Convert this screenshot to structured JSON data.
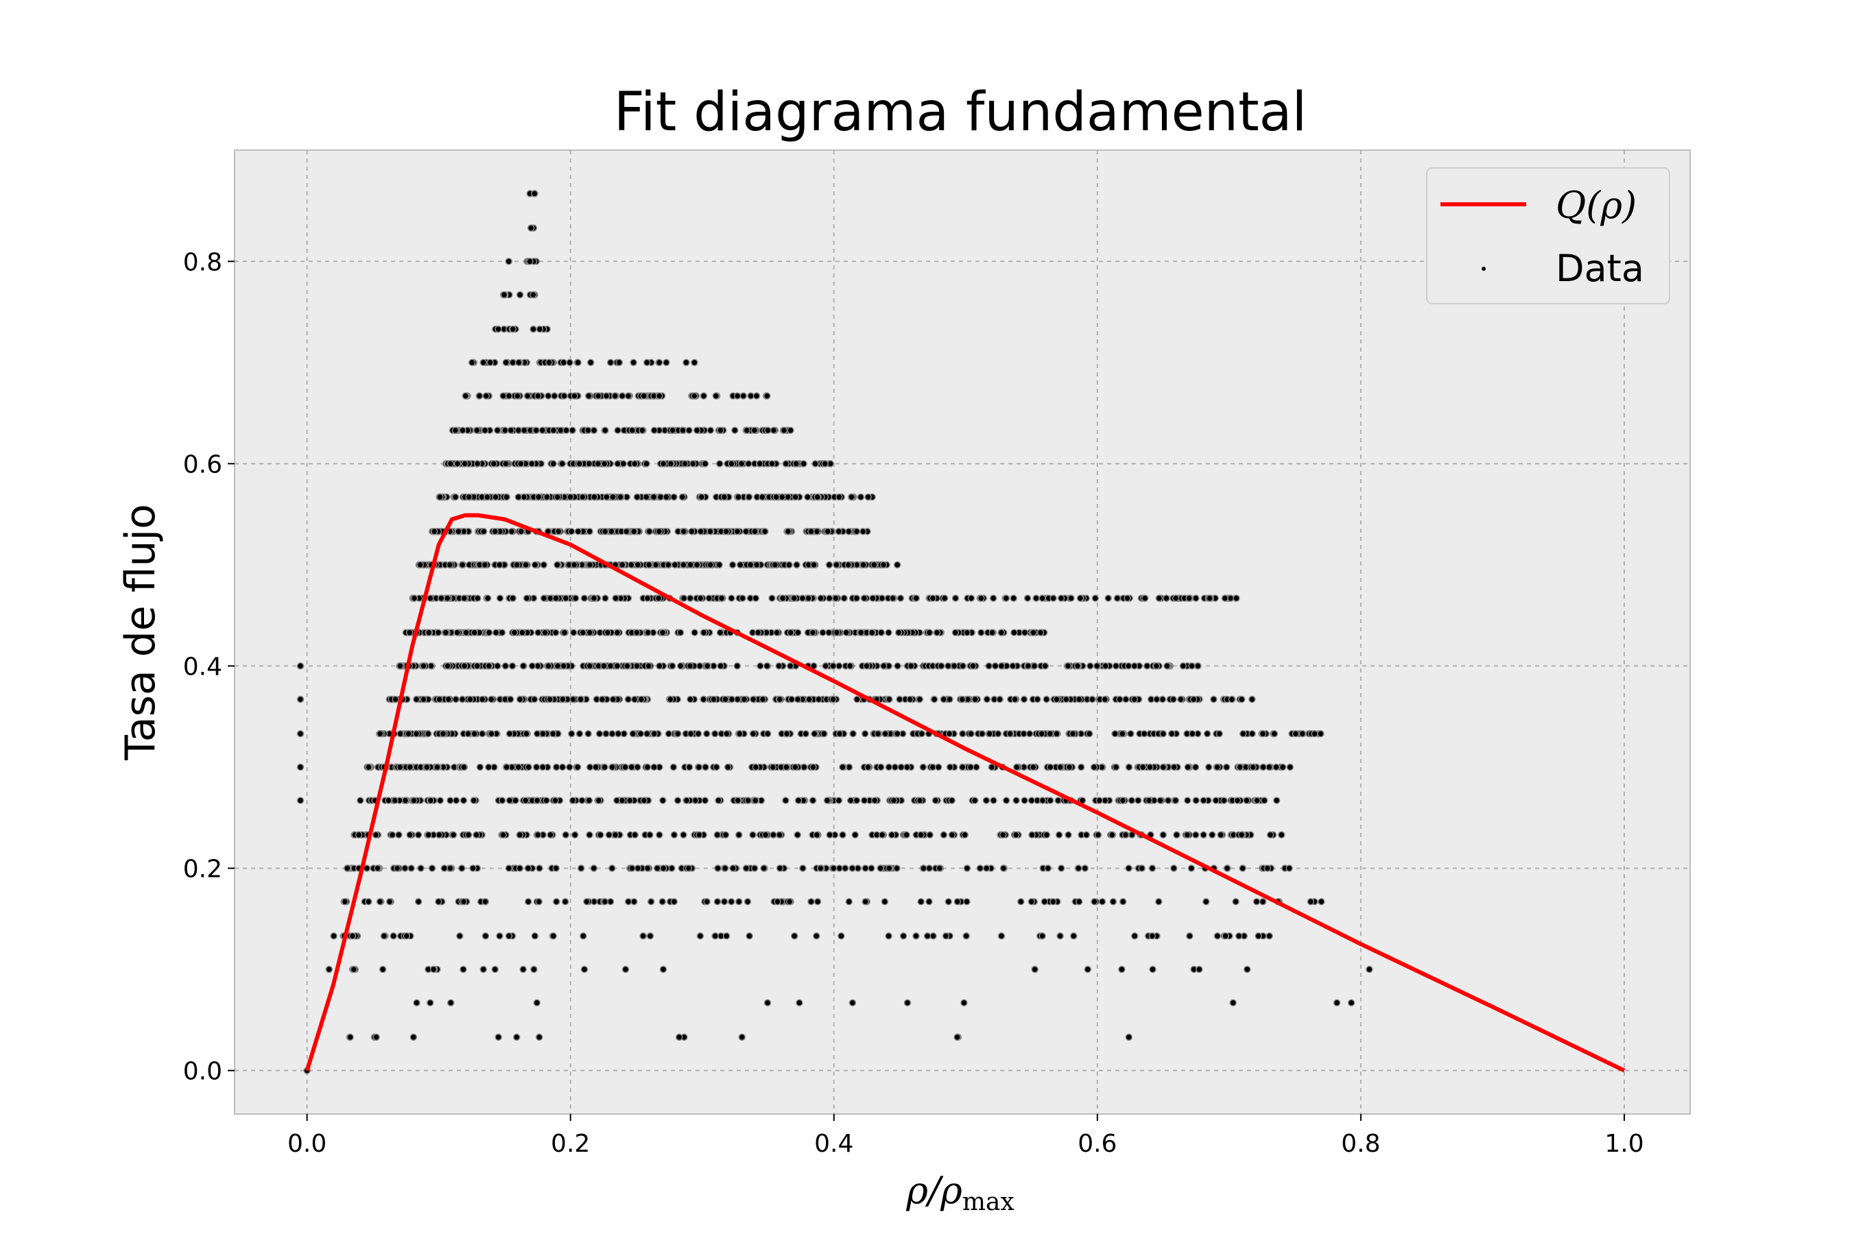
{
  "chart_data": {
    "type": "scatter",
    "title": "Fit diagrama fundamental",
    "xlabel": "ρ/ρmax",
    "ylabel": "Tasa de flujo",
    "xlim": [
      -0.055,
      1.05
    ],
    "ylim": [
      -0.043,
      0.91
    ],
    "x_ticks": [
      "0.0",
      "0.2",
      "0.4",
      "0.6",
      "0.8",
      "1.0"
    ],
    "y_ticks": [
      "0.0",
      "0.2",
      "0.4",
      "0.6",
      "0.8"
    ],
    "grid": true,
    "legend_position": "top-right",
    "colors": {
      "background": "#ececec",
      "fit": "#ff0000",
      "data": "#000000",
      "grid": "#b0b0b0"
    },
    "series": [
      {
        "name": "Q(ρ)",
        "type": "line",
        "x": [
          0.0,
          0.02,
          0.04,
          0.06,
          0.08,
          0.1,
          0.11,
          0.12,
          0.13,
          0.15,
          0.2,
          0.3,
          0.4,
          0.5,
          0.6,
          0.7,
          0.8,
          0.9,
          1.0
        ],
        "y": [
          0.0,
          0.085,
          0.19,
          0.3,
          0.42,
          0.52,
          0.545,
          0.549,
          0.549,
          0.545,
          0.52,
          0.45,
          0.385,
          0.318,
          0.255,
          0.19,
          0.125,
          0.063,
          0.0
        ]
      },
      {
        "name": "Data",
        "type": "scatter",
        "bands": [
          {
            "y": 0.867,
            "xmin": 0.167,
            "xmax": 0.177,
            "n": 3
          },
          {
            "y": 0.833,
            "xmin": 0.167,
            "xmax": 0.172,
            "n": 2
          },
          {
            "y": 0.8,
            "xmin": 0.15,
            "xmax": 0.178,
            "n": 6
          },
          {
            "y": 0.767,
            "xmin": 0.145,
            "xmax": 0.178,
            "n": 9
          },
          {
            "y": 0.733,
            "xmin": 0.14,
            "xmax": 0.187,
            "n": 12
          },
          {
            "y": 0.7,
            "xmin": 0.125,
            "xmax": 0.3,
            "n": 40
          },
          {
            "y": 0.667,
            "xmin": 0.12,
            "xmax": 0.35,
            "n": 80
          },
          {
            "y": 0.633,
            "xmin": 0.11,
            "xmax": 0.37,
            "n": 120
          },
          {
            "y": 0.6,
            "xmin": 0.105,
            "xmax": 0.4,
            "n": 150
          },
          {
            "y": 0.567,
            "xmin": 0.1,
            "xmax": 0.43,
            "n": 170
          },
          {
            "y": 0.533,
            "xmin": 0.095,
            "xmax": 0.43,
            "n": 190
          },
          {
            "y": 0.5,
            "xmin": 0.085,
            "xmax": 0.45,
            "n": 210
          },
          {
            "y": 0.467,
            "xmin": 0.08,
            "xmax": 0.73,
            "n": 220
          },
          {
            "y": 0.433,
            "xmin": 0.075,
            "xmax": 0.56,
            "n": 230
          },
          {
            "y": 0.4,
            "xmin": 0.07,
            "xmax": 0.68,
            "n": 240
          },
          {
            "y": 0.367,
            "xmin": 0.06,
            "xmax": 0.72,
            "n": 250
          },
          {
            "y": 0.333,
            "xmin": 0.055,
            "xmax": 0.77,
            "n": 250
          },
          {
            "y": 0.3,
            "xmin": 0.045,
            "xmax": 0.75,
            "n": 230
          },
          {
            "y": 0.267,
            "xmin": 0.04,
            "xmax": 0.74,
            "n": 200
          },
          {
            "y": 0.233,
            "xmin": 0.035,
            "xmax": 0.74,
            "n": 170
          },
          {
            "y": 0.2,
            "xmin": 0.03,
            "xmax": 0.75,
            "n": 130
          },
          {
            "y": 0.167,
            "xmin": 0.025,
            "xmax": 0.79,
            "n": 90
          },
          {
            "y": 0.133,
            "xmin": 0.02,
            "xmax": 0.78,
            "n": 60
          },
          {
            "y": 0.1,
            "xmin": 0.012,
            "xmax": 0.81,
            "n": 25
          },
          {
            "y": 0.067,
            "xmin": 0.005,
            "xmax": 0.805,
            "n": 12
          },
          {
            "y": 0.033,
            "xmin": 0.0,
            "xmax": 0.665,
            "n": 14
          },
          {
            "y": 0.0,
            "xmin": 0.0,
            "xmax": 0.0,
            "n": 1
          }
        ],
        "edge_points": [
          {
            "x": -0.005,
            "y": 0.4
          },
          {
            "x": -0.005,
            "y": 0.367
          },
          {
            "x": -0.005,
            "y": 0.333
          },
          {
            "x": -0.005,
            "y": 0.3
          },
          {
            "x": -0.005,
            "y": 0.267
          }
        ]
      }
    ]
  }
}
